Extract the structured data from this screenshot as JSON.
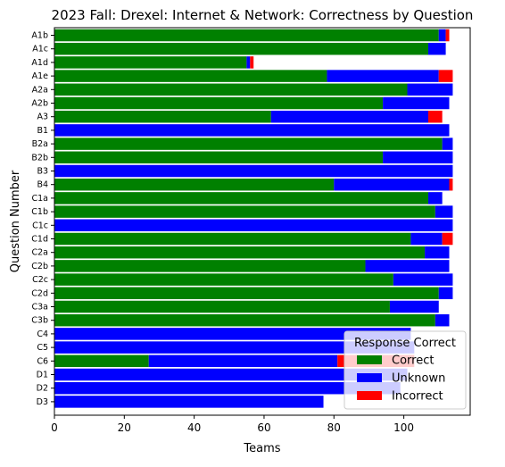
{
  "chart_data": {
    "type": "bar",
    "orientation": "horizontal",
    "stacked": true,
    "title": "2023 Fall: Drexel: Internet & Network: Correctness by Question",
    "xlabel": "Teams",
    "ylabel": "Question Number",
    "xlim": [
      0,
      119
    ],
    "xticks": [
      0,
      20,
      40,
      60,
      80,
      100
    ],
    "grid": false,
    "legend": {
      "title": "Response Correct",
      "placement": "lower-right"
    },
    "categories": [
      "A1b",
      "A1c",
      "A1d",
      "A1e",
      "A2a",
      "A2b",
      "A3",
      "B1",
      "B2a",
      "B2b",
      "B3",
      "B4",
      "C1a",
      "C1b",
      "C1c",
      "C1d",
      "C2a",
      "C2b",
      "C2c",
      "C2d",
      "C3a",
      "C3b",
      "C4",
      "C5",
      "C6",
      "D1",
      "D2",
      "D3"
    ],
    "series": [
      {
        "name": "Correct",
        "color": "#008000",
        "values": [
          110,
          107,
          55,
          78,
          101,
          94,
          62,
          0,
          111,
          94,
          0,
          80,
          107,
          109,
          0,
          102,
          106,
          89,
          97,
          110,
          96,
          109,
          0,
          0,
          27,
          0,
          0,
          0
        ]
      },
      {
        "name": "Unknown",
        "color": "#0000ff",
        "values": [
          2,
          5,
          1,
          32,
          13,
          19,
          45,
          113,
          3,
          20,
          114,
          33,
          4,
          5,
          114,
          9,
          7,
          24,
          17,
          4,
          14,
          4,
          102,
          103,
          54,
          101,
          99,
          77
        ]
      },
      {
        "name": "Incorrect",
        "color": "#ff0000",
        "values": [
          1,
          0,
          1,
          4,
          0,
          0,
          4,
          0,
          0,
          0,
          0,
          1,
          0,
          0,
          0,
          3,
          0,
          0,
          0,
          0,
          0,
          0,
          0,
          0,
          22,
          0,
          0,
          0
        ]
      }
    ]
  }
}
